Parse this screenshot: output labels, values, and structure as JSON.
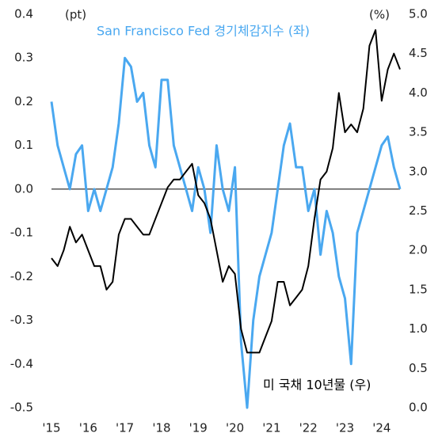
{
  "chart_data": {
    "type": "line",
    "y_unit_label": "(pt)",
    "y2_unit_label": "(%)",
    "x": [
      2015,
      2015.167,
      2015.333,
      2015.5,
      2015.667,
      2015.833,
      2016,
      2016.167,
      2016.333,
      2016.5,
      2016.667,
      2016.833,
      2017,
      2017.167,
      2017.333,
      2017.5,
      2017.667,
      2017.833,
      2018,
      2018.167,
      2018.333,
      2018.5,
      2018.667,
      2018.833,
      2019,
      2019.167,
      2019.333,
      2019.5,
      2019.667,
      2019.833,
      2020,
      2020.167,
      2020.333,
      2020.5,
      2020.667,
      2020.833,
      2021,
      2021.167,
      2021.333,
      2021.5,
      2021.667,
      2021.833,
      2022,
      2022.167,
      2022.333,
      2022.5,
      2022.667,
      2022.833,
      2023,
      2023.167,
      2023.333,
      2023.5,
      2023.667,
      2023.833,
      2024,
      2024.167,
      2024.333,
      2024.5
    ],
    "xlim": [
      2015,
      2024.5
    ],
    "xticks": [
      {
        "value": 2015,
        "label": "'15"
      },
      {
        "value": 2016,
        "label": "'16"
      },
      {
        "value": 2017,
        "label": "'17"
      },
      {
        "value": 2018,
        "label": "'18"
      },
      {
        "value": 2019,
        "label": "'19"
      },
      {
        "value": 2020,
        "label": "'20"
      },
      {
        "value": 2021,
        "label": "'21"
      },
      {
        "value": 2022,
        "label": "'22"
      },
      {
        "value": 2023,
        "label": "'23"
      },
      {
        "value": 2024,
        "label": "'24"
      }
    ],
    "ylim": [
      -0.5,
      0.4
    ],
    "yticks": [
      {
        "value": -0.5,
        "label": "-0.5"
      },
      {
        "value": -0.4,
        "label": "-0.4"
      },
      {
        "value": -0.3,
        "label": "-0.3"
      },
      {
        "value": -0.2,
        "label": "-0.2"
      },
      {
        "value": -0.1,
        "label": "-0.1"
      },
      {
        "value": 0,
        "label": "0.0"
      },
      0.1,
      0.2,
      0.3,
      0.4
    ],
    "y2lim": [
      0,
      5
    ],
    "y2ticks": [
      {
        "value": 0,
        "label": "0.0"
      },
      0.5,
      {
        "value": 1,
        "label": "1.0"
      },
      1.5,
      {
        "value": 2,
        "label": "2.0"
      },
      2.5,
      {
        "value": 3,
        "label": "3.0"
      },
      3.5,
      {
        "value": 4,
        "label": "4.0"
      },
      4.5,
      {
        "value": 5,
        "label": "5.0"
      }
    ],
    "series": [
      {
        "name": "San Francisco Fed 경기체감지수 (좌)",
        "color": "#4aa8f0",
        "values": [
          0.2,
          0.1,
          0.05,
          0,
          0.08,
          0.1,
          -0.05,
          0,
          -0.05,
          0,
          0.05,
          0.15,
          0.3,
          0.28,
          0.2,
          0.22,
          0.1,
          0.05,
          0.25,
          0.25,
          0.1,
          0.05,
          0,
          -0.05,
          0.05,
          0,
          -0.1,
          0.1,
          0,
          -0.05,
          0.05,
          -0.35,
          -0.5,
          -0.3,
          -0.2,
          -0.15,
          -0.1,
          0,
          0.1,
          0.15,
          0.05,
          0.05,
          -0.05,
          0,
          -0.15,
          -0.05,
          -0.1,
          -0.2,
          -0.25,
          -0.4,
          -0.1,
          -0.05,
          0,
          0.05,
          0.1,
          0.12,
          0.05,
          0
        ]
      },
      {
        "name": "미 국채 10년물 (우)",
        "color": "#000000",
        "axis": "y2",
        "values": [
          1.9,
          1.8,
          2.0,
          2.3,
          2.1,
          2.2,
          2.0,
          1.8,
          1.8,
          1.5,
          1.6,
          2.2,
          2.4,
          2.4,
          2.3,
          2.2,
          2.2,
          2.4,
          2.6,
          2.8,
          2.9,
          2.9,
          3.0,
          3.1,
          2.7,
          2.6,
          2.4,
          2.0,
          1.6,
          1.8,
          1.7,
          1.0,
          0.7,
          0.7,
          0.7,
          0.9,
          1.1,
          1.6,
          1.6,
          1.3,
          1.4,
          1.5,
          1.8,
          2.4,
          2.9,
          3.0,
          3.3,
          4.0,
          3.5,
          3.6,
          3.5,
          3.8,
          4.6,
          4.8,
          3.9,
          4.3,
          4.5,
          4.3
        ]
      }
    ]
  }
}
